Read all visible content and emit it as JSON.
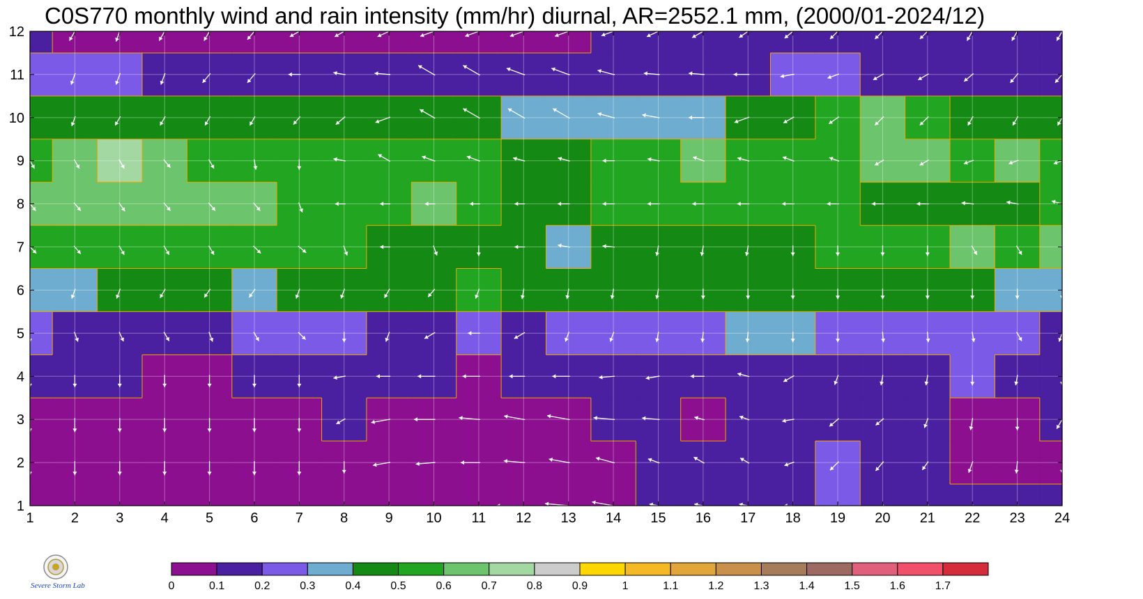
{
  "title": "C0S770 monthly wind and rain intensity (mm/hr) diurnal, AR=2552.1 mm, (2000/01-2024/12)",
  "logo": {
    "icon": "severe-storm-lab-logo",
    "text": "Severe Storm Lab."
  },
  "chart_data": {
    "type": "heatmap",
    "title": "C0S770 monthly wind and rain intensity (mm/hr) diurnal, AR=2552.1 mm, (2000/01-2024/12)",
    "xlabel": "",
    "ylabel": "",
    "xlim": [
      1,
      24
    ],
    "ylim": [
      1,
      12
    ],
    "x_ticks": [
      "1",
      "2",
      "3",
      "4",
      "5",
      "6",
      "7",
      "8",
      "9",
      "10",
      "11",
      "12",
      "13",
      "14",
      "15",
      "16",
      "17",
      "18",
      "19",
      "20",
      "21",
      "22",
      "23",
      "24"
    ],
    "y_ticks": [
      "1",
      "2",
      "3",
      "4",
      "5",
      "6",
      "7",
      "8",
      "9",
      "10",
      "11",
      "12"
    ],
    "grid": true,
    "colorbar": {
      "placement": "bottom",
      "levels": [
        "0",
        "0.1",
        "0.2",
        "0.3",
        "0.4",
        "0.5",
        "0.6",
        "0.7",
        "0.8",
        "0.9",
        "1",
        "1.1",
        "1.2",
        "1.3",
        "1.4",
        "1.5",
        "1.6",
        "1.7"
      ],
      "colors": [
        "#8b0f8e",
        "#4a1fa0",
        "#7a5ae6",
        "#6eadd0",
        "#148a14",
        "#22a622",
        "#6cc46c",
        "#a3d8a3",
        "#cccccc",
        "#ffd700",
        "#f6b926",
        "#e2a53a",
        "#c8904a",
        "#a67c5b",
        "#9c6a63",
        "#e0607c",
        "#f0506a",
        "#d52c3c"
      ]
    },
    "contour_line_color": "#f2a500",
    "arrow_color": "#ffffff",
    "rows_by_month": {
      "1": [
        0.05,
        0.05,
        0.05,
        0.05,
        0.05,
        0.05,
        0.05,
        0.05,
        0.05,
        0.05,
        0.05,
        0.05,
        0.05,
        0.05,
        0.15,
        0.15,
        0.15,
        0.15,
        0.25,
        0.15,
        0.15,
        0.15,
        0.15,
        0.15
      ],
      "2": [
        0.05,
        0.05,
        0.05,
        0.05,
        0.05,
        0.05,
        0.05,
        0.05,
        0.05,
        0.05,
        0.05,
        0.05,
        0.05,
        0.05,
        0.15,
        0.15,
        0.15,
        0.15,
        0.25,
        0.15,
        0.15,
        0.05,
        0.05,
        0.05
      ],
      "3": [
        0.05,
        0.05,
        0.05,
        0.05,
        0.05,
        0.05,
        0.05,
        0.15,
        0.05,
        0.05,
        0.05,
        0.05,
        0.05,
        0.15,
        0.15,
        0.05,
        0.15,
        0.15,
        0.15,
        0.15,
        0.15,
        0.05,
        0.05,
        0.15
      ],
      "4": [
        0.15,
        0.15,
        0.15,
        0.05,
        0.05,
        0.15,
        0.15,
        0.15,
        0.15,
        0.15,
        0.05,
        0.15,
        0.15,
        0.15,
        0.15,
        0.15,
        0.15,
        0.15,
        0.15,
        0.15,
        0.15,
        0.25,
        0.15,
        0.15
      ],
      "5": [
        0.25,
        0.15,
        0.15,
        0.15,
        0.15,
        0.25,
        0.25,
        0.25,
        0.15,
        0.15,
        0.25,
        0.15,
        0.25,
        0.25,
        0.25,
        0.25,
        0.35,
        0.35,
        0.25,
        0.25,
        0.25,
        0.25,
        0.25,
        0.15
      ],
      "6": [
        0.35,
        0.35,
        0.45,
        0.45,
        0.45,
        0.35,
        0.45,
        0.45,
        0.45,
        0.45,
        0.55,
        0.45,
        0.45,
        0.45,
        0.45,
        0.45,
        0.45,
        0.45,
        0.45,
        0.45,
        0.45,
        0.45,
        0.35,
        0.35
      ],
      "7": [
        0.55,
        0.55,
        0.55,
        0.55,
        0.55,
        0.55,
        0.55,
        0.55,
        0.45,
        0.45,
        0.45,
        0.45,
        0.35,
        0.45,
        0.45,
        0.45,
        0.45,
        0.45,
        0.55,
        0.55,
        0.55,
        0.65,
        0.55,
        0.65
      ],
      "8": [
        0.65,
        0.65,
        0.65,
        0.65,
        0.65,
        0.65,
        0.55,
        0.55,
        0.55,
        0.65,
        0.55,
        0.45,
        0.45,
        0.55,
        0.55,
        0.55,
        0.55,
        0.55,
        0.55,
        0.45,
        0.45,
        0.45,
        0.45,
        0.55
      ],
      "9": [
        0.55,
        0.65,
        0.75,
        0.65,
        0.55,
        0.55,
        0.55,
        0.55,
        0.55,
        0.55,
        0.55,
        0.45,
        0.45,
        0.55,
        0.55,
        0.65,
        0.55,
        0.55,
        0.55,
        0.65,
        0.65,
        0.55,
        0.65,
        0.55
      ],
      "10": [
        0.45,
        0.45,
        0.45,
        0.45,
        0.45,
        0.45,
        0.45,
        0.45,
        0.45,
        0.45,
        0.45,
        0.35,
        0.35,
        0.35,
        0.35,
        0.35,
        0.45,
        0.45,
        0.55,
        0.65,
        0.55,
        0.45,
        0.45,
        0.45
      ],
      "11": [
        0.25,
        0.25,
        0.25,
        0.15,
        0.15,
        0.15,
        0.15,
        0.15,
        0.15,
        0.15,
        0.15,
        0.15,
        0.15,
        0.15,
        0.15,
        0.15,
        0.15,
        0.25,
        0.25,
        0.15,
        0.15,
        0.15,
        0.15,
        0.15
      ],
      "12": [
        0.15,
        0.05,
        0.05,
        0.05,
        0.05,
        0.05,
        0.05,
        0.05,
        0.05,
        0.05,
        0.05,
        0.05,
        0.05,
        0.15,
        0.15,
        0.15,
        0.15,
        0.15,
        0.15,
        0.15,
        0.15,
        0.15,
        0.15,
        0.15
      ]
    },
    "wind_direction_deg_by_month": {
      "1": [
        180,
        180,
        180,
        180,
        180,
        180,
        180,
        180,
        250,
        260,
        265,
        270,
        275,
        280,
        280,
        280,
        280,
        270,
        250,
        240,
        240,
        200,
        190,
        190
      ],
      "2": [
        180,
        180,
        180,
        180,
        180,
        180,
        180,
        180,
        260,
        265,
        270,
        275,
        280,
        285,
        290,
        300,
        300,
        250,
        225,
        220,
        215,
        200,
        185,
        180
      ],
      "3": [
        180,
        180,
        180,
        180,
        180,
        180,
        180,
        240,
        260,
        270,
        275,
        280,
        280,
        275,
        275,
        285,
        290,
        260,
        230,
        230,
        200,
        190,
        180,
        210
      ],
      "4": [
        180,
        180,
        180,
        180,
        180,
        180,
        180,
        260,
        270,
        270,
        270,
        270,
        270,
        265,
        260,
        270,
        285,
        240,
        200,
        190,
        190,
        180,
        190,
        180
      ],
      "5": [
        180,
        160,
        155,
        150,
        160,
        150,
        135,
        180,
        200,
        240,
        270,
        240,
        200,
        200,
        190,
        185,
        185,
        180,
        180,
        175,
        175,
        170,
        150,
        200
      ],
      "6": [
        210,
        200,
        200,
        210,
        215,
        215,
        200,
        200,
        210,
        220,
        200,
        190,
        190,
        190,
        190,
        180,
        180,
        180,
        180,
        180,
        180,
        180,
        180,
        180
      ],
      "7": [
        135,
        140,
        150,
        150,
        150,
        135,
        130,
        160,
        270,
        160,
        180,
        270,
        280,
        275,
        190,
        190,
        190,
        180,
        180,
        180,
        180,
        150,
        150,
        150
      ],
      "8": [
        140,
        140,
        145,
        140,
        140,
        140,
        160,
        270,
        270,
        270,
        270,
        270,
        270,
        270,
        270,
        270,
        270,
        270,
        270,
        270,
        270,
        275,
        280,
        285
      ],
      "9": [
        150,
        150,
        150,
        140,
        150,
        170,
        180,
        280,
        300,
        290,
        290,
        285,
        285,
        270,
        280,
        290,
        285,
        290,
        290,
        240,
        240,
        250,
        250,
        250
      ],
      "10": [
        200,
        200,
        210,
        210,
        210,
        210,
        220,
        230,
        250,
        300,
        300,
        300,
        300,
        285,
        280,
        270,
        250,
        240,
        235,
        225,
        225,
        210,
        210,
        210
      ],
      "11": [
        200,
        200,
        200,
        200,
        220,
        220,
        270,
        280,
        275,
        300,
        300,
        290,
        290,
        285,
        275,
        275,
        270,
        260,
        250,
        240,
        240,
        230,
        220,
        220
      ],
      "12": [
        210,
        210,
        200,
        210,
        210,
        220,
        240,
        240,
        245,
        250,
        250,
        250,
        250,
        250,
        245,
        240,
        235,
        230,
        225,
        225,
        225,
        210,
        210,
        210
      ]
    },
    "wind_speed_scale_by_month": {
      "1": [
        0.7,
        0.7,
        0.7,
        0.7,
        0.7,
        0.7,
        0.7,
        0.6,
        0.7,
        1.2,
        1.4,
        1.5,
        1.3,
        1.2,
        0.5,
        0.5,
        0.5,
        0.5,
        0.5,
        0.5,
        0.5,
        0.7,
        0.7,
        0.7
      ],
      "2": [
        0.7,
        0.7,
        0.7,
        0.7,
        0.7,
        0.7,
        0.7,
        0.6,
        0.9,
        1.0,
        1.0,
        1.1,
        1.1,
        1.0,
        0.6,
        0.6,
        0.5,
        0.5,
        0.6,
        0.6,
        0.5,
        0.6,
        0.6,
        0.6
      ],
      "3": [
        0.7,
        0.7,
        0.7,
        0.7,
        0.7,
        0.7,
        0.7,
        0.5,
        1.0,
        1.1,
        1.1,
        1.1,
        1.2,
        1.1,
        0.9,
        0.5,
        0.5,
        0.6,
        0.6,
        0.5,
        0.5,
        0.6,
        0.6,
        0.6
      ],
      "4": [
        0.6,
        0.6,
        0.6,
        0.6,
        0.6,
        0.6,
        0.6,
        0.6,
        0.7,
        0.9,
        0.9,
        0.8,
        0.9,
        0.8,
        0.7,
        0.7,
        0.6,
        0.6,
        0.5,
        0.5,
        0.5,
        0.5,
        0.5,
        0.5
      ],
      "5": [
        0.5,
        0.5,
        0.5,
        0.5,
        0.5,
        0.5,
        0.5,
        0.5,
        0.5,
        0.6,
        0.6,
        0.6,
        0.5,
        0.5,
        0.5,
        0.5,
        0.5,
        0.5,
        0.5,
        0.5,
        0.5,
        0.5,
        0.5,
        0.5
      ],
      "6": [
        0.5,
        0.5,
        0.5,
        0.5,
        0.5,
        0.5,
        0.5,
        0.5,
        0.5,
        0.5,
        0.5,
        0.5,
        0.5,
        0.5,
        0.5,
        0.5,
        0.5,
        0.5,
        0.5,
        0.5,
        0.5,
        0.5,
        0.5,
        0.5
      ],
      "7": [
        0.5,
        0.5,
        0.5,
        0.5,
        0.5,
        0.5,
        0.5,
        0.5,
        0.5,
        0.5,
        0.5,
        0.5,
        0.6,
        0.6,
        0.5,
        0.5,
        0.5,
        0.5,
        0.5,
        0.5,
        0.5,
        0.5,
        0.5,
        0.5
      ],
      "8": [
        0.5,
        0.5,
        0.5,
        0.5,
        0.5,
        0.5,
        0.5,
        0.5,
        0.5,
        0.5,
        0.5,
        0.5,
        0.6,
        0.6,
        0.6,
        0.6,
        0.6,
        0.6,
        0.6,
        0.6,
        0.6,
        0.6,
        0.6,
        0.6
      ],
      "9": [
        0.5,
        0.5,
        0.5,
        0.5,
        0.5,
        0.5,
        0.5,
        0.6,
        0.7,
        0.7,
        0.7,
        0.6,
        0.6,
        0.6,
        0.6,
        0.6,
        0.6,
        0.6,
        0.5,
        0.5,
        0.5,
        0.5,
        0.5,
        0.5
      ],
      "10": [
        0.5,
        0.5,
        0.5,
        0.5,
        0.5,
        0.5,
        0.5,
        0.6,
        0.8,
        0.9,
        1.0,
        1.0,
        1.0,
        0.9,
        0.9,
        0.8,
        0.8,
        0.6,
        0.6,
        0.6,
        0.6,
        0.5,
        0.5,
        0.5
      ],
      "11": [
        0.6,
        0.6,
        0.6,
        0.6,
        0.6,
        0.6,
        0.6,
        0.6,
        0.8,
        1.0,
        1.0,
        1.0,
        1.0,
        0.9,
        0.8,
        0.8,
        0.8,
        0.7,
        0.6,
        0.6,
        0.6,
        0.6,
        0.6,
        0.6
      ],
      "12": [
        0.6,
        0.6,
        0.6,
        0.6,
        0.6,
        0.6,
        0.6,
        0.6,
        0.7,
        0.8,
        0.8,
        0.8,
        0.8,
        0.7,
        0.7,
        0.7,
        0.6,
        0.6,
        0.6,
        0.6,
        0.6,
        0.6,
        0.6,
        0.6
      ]
    }
  }
}
